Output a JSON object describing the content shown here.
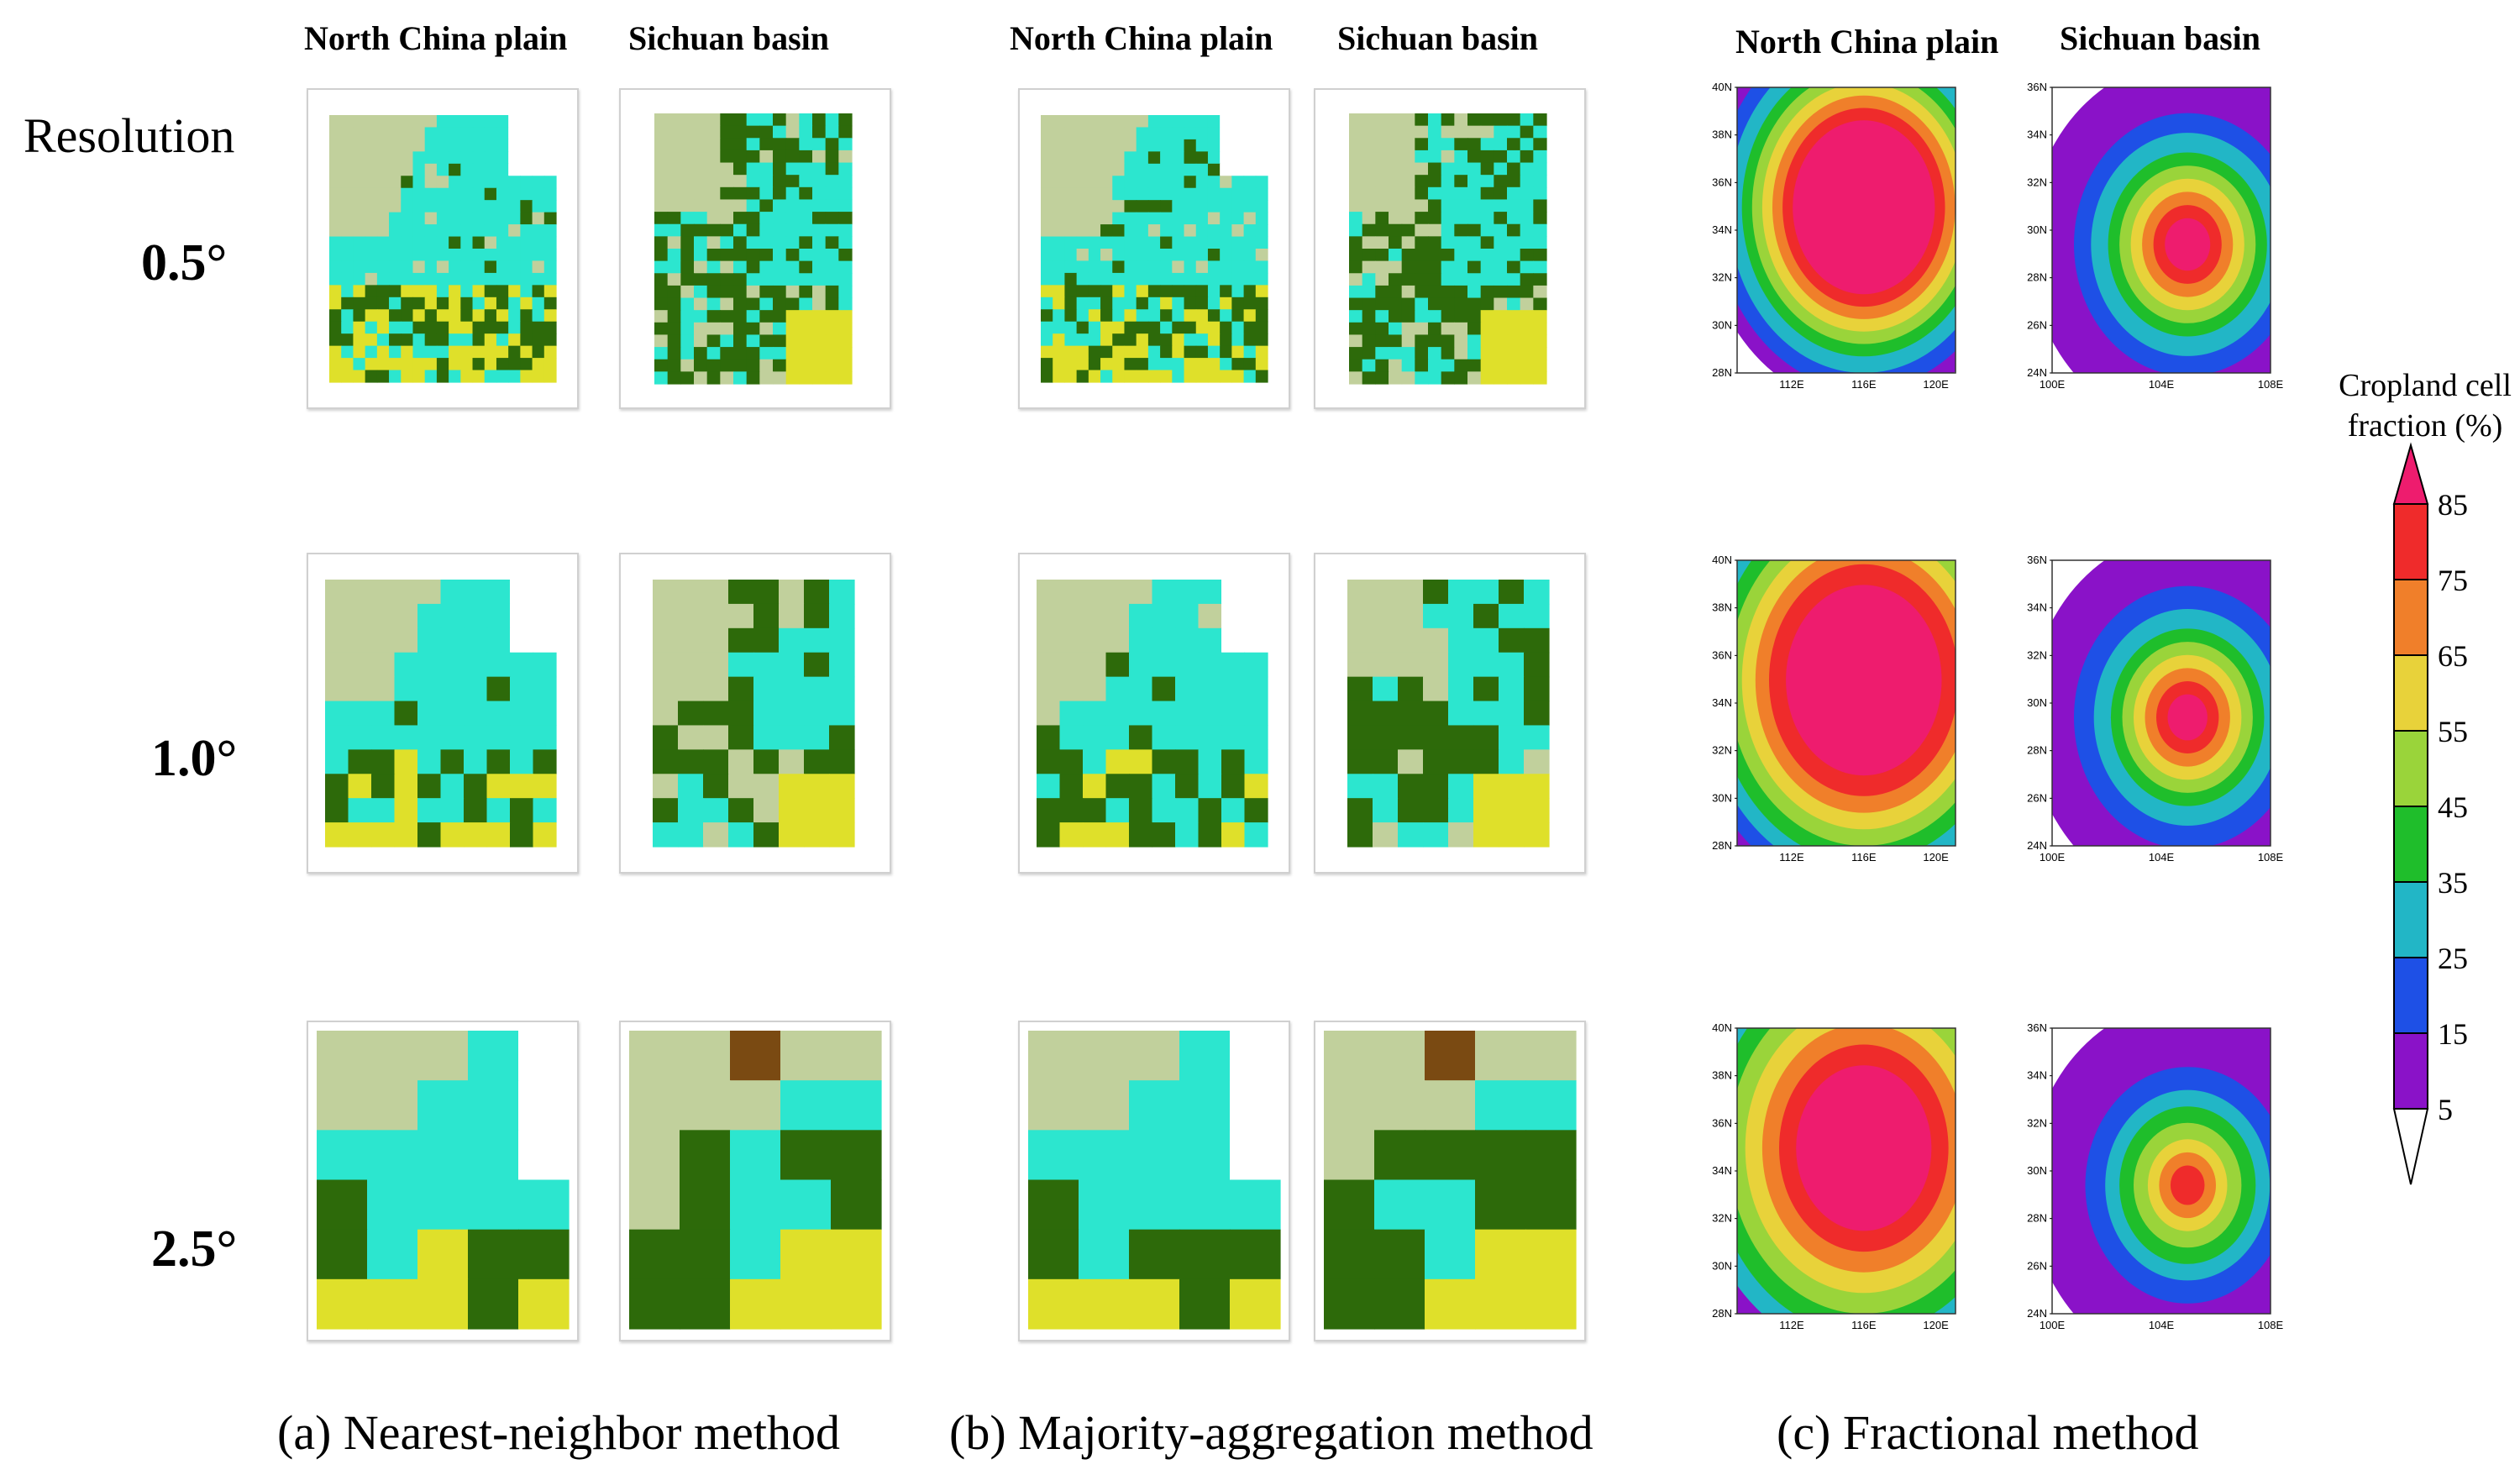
{
  "columns": {
    "a1": "North China plain",
    "a2": "Sichuan basin",
    "b1": "North China plain",
    "b2": "Sichuan basin",
    "c1": "North China plain",
    "c2": "Sichuan basin"
  },
  "resolution_title": "Resolution",
  "resolutions": [
    "0.5°",
    "1.0°",
    "2.5°"
  ],
  "captions": {
    "a": "(a) Nearest-neighbor method",
    "b": "(b) Majority-aggregation method",
    "c": "(c) Fractional method"
  },
  "colorbar": {
    "title_line1": "Cropland cell",
    "title_line2": "fraction (%)",
    "ticks": [
      "85",
      "75",
      "65",
      "55",
      "45",
      "35",
      "25",
      "15",
      "5"
    ],
    "colors": [
      "#ee1c6e",
      "#ef2b2b",
      "#f07f2a",
      "#e8d23a",
      "#9ad43a",
      "#1fbe2b",
      "#22b6c6",
      "#1e50e6",
      "#8a12c8",
      "#ffffff"
    ]
  },
  "class_colors": {
    "grass": "#c1d09c",
    "crop": "#2ce6cf",
    "forest": "#2d6a0a",
    "shrub": "#dfe02a",
    "barren": "#7a4a12",
    "water": "#8fd0f0",
    "none": "#ffffff"
  },
  "map_axes": {
    "ncp": {
      "lat": [
        "40N",
        "38N",
        "36N",
        "34N",
        "32N",
        "30N",
        "28N"
      ],
      "lon": [
        "112E",
        "116E",
        "120E"
      ]
    },
    "scb": {
      "lat": [
        "36N",
        "34N",
        "32N",
        "30N",
        "28N",
        "26N",
        "24N"
      ],
      "lon": [
        "100E",
        "104E",
        "108E"
      ]
    }
  }
}
